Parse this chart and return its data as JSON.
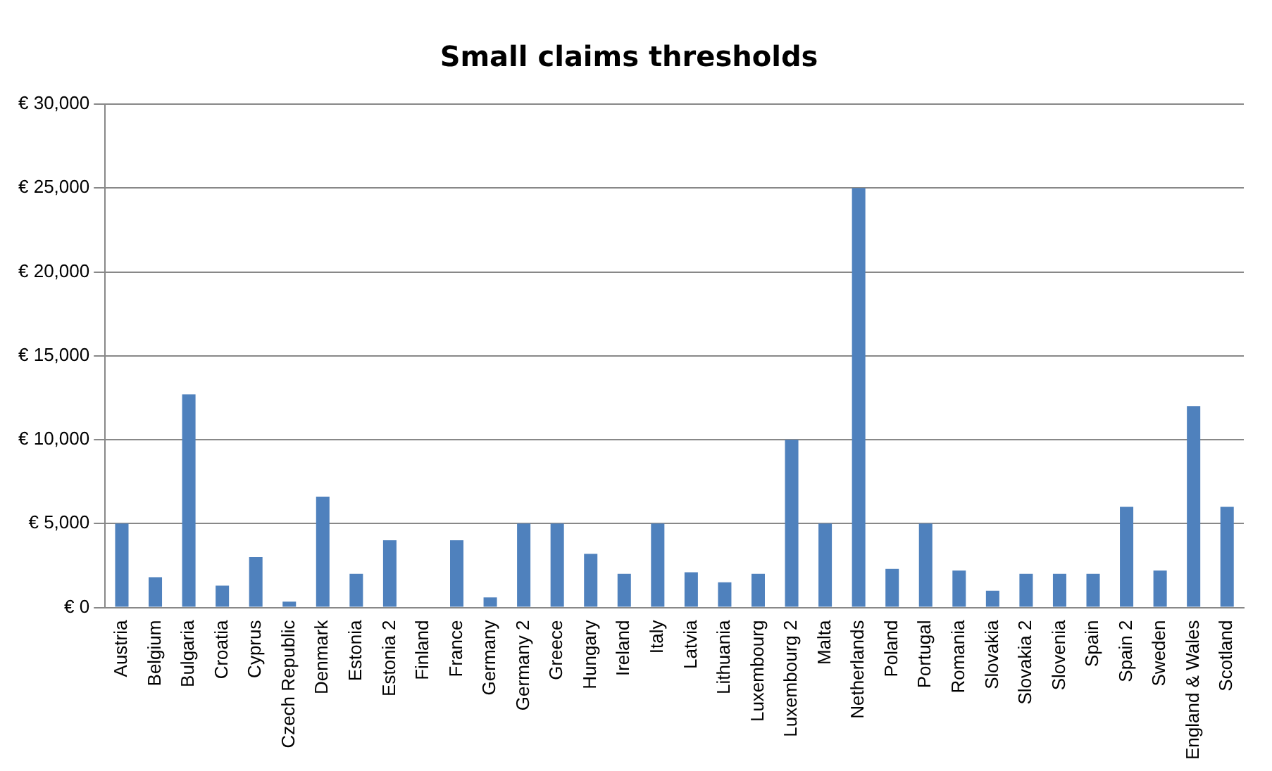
{
  "chart_data": {
    "type": "bar",
    "title": "Small claims thresholds",
    "categories": [
      "Austria",
      "Belgium",
      "Bulgaria",
      "Croatia",
      "Cyprus",
      "Czech Republic",
      "Denmark",
      "Estonia",
      "Estonia 2",
      "Finland",
      "France",
      "Germany",
      "Germany 2",
      "Greece",
      "Hungary",
      "Ireland",
      "Italy",
      "Latvia",
      "Lithuania",
      "Luxembourg",
      "Luxembourg 2",
      "Malta",
      "Netherlands",
      "Poland",
      "Portugal",
      "Romania",
      "Slovakia",
      "Slovakia 2",
      "Slovenia",
      "Spain",
      "Spain 2",
      "Sweden",
      "England & Wales",
      "Scotland"
    ],
    "values": [
      5000,
      1800,
      12700,
      1300,
      3000,
      350,
      6600,
      2000,
      4000,
      0,
      4000,
      600,
      5000,
      5000,
      3200,
      2000,
      5000,
      2100,
      1500,
      2000,
      10000,
      5000,
      25000,
      2300,
      5000,
      2200,
      1000,
      2000,
      2000,
      2000,
      6000,
      2200,
      12000,
      6000
    ],
    "color": "#4f81bd",
    "ylim": [
      0,
      30000
    ],
    "yticks": [
      {
        "value": 0,
        "label": "€ 0"
      },
      {
        "value": 5000,
        "label": "€ 5,000"
      },
      {
        "value": 10000,
        "label": "€ 10,000"
      },
      {
        "value": 15000,
        "label": "€ 15,000"
      },
      {
        "value": 20000,
        "label": "€ 20,000"
      },
      {
        "value": 25000,
        "label": "€ 25,000"
      },
      {
        "value": 30000,
        "label": "€ 30,000"
      }
    ],
    "grid": "y",
    "legend": false
  }
}
